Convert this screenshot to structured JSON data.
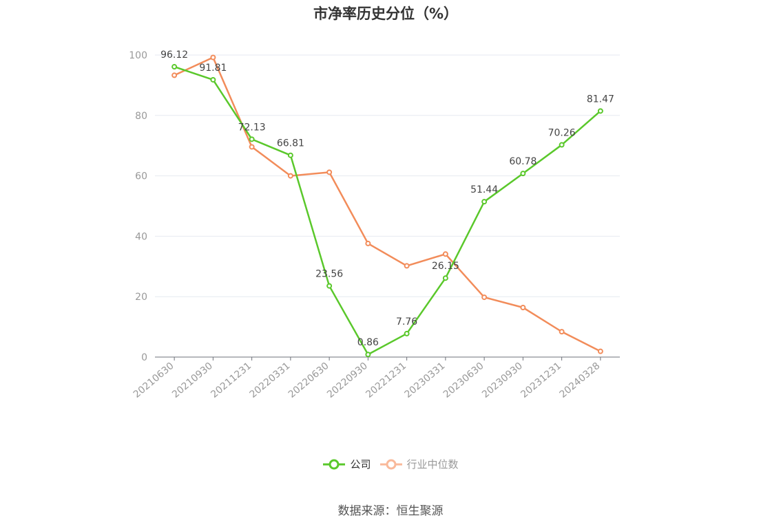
{
  "title": "市净率历史分位（%）",
  "source": "数据来源：恒生聚源",
  "chart_data": {
    "type": "line",
    "title": "市净率历史分位（%）",
    "categories": [
      "20210630",
      "20210930",
      "20211231",
      "20220331",
      "20220630",
      "20220930",
      "20221231",
      "20230331",
      "20230630",
      "20230930",
      "20231231",
      "20240328"
    ],
    "ylim": [
      0,
      100
    ],
    "yticks": [
      0,
      20,
      40,
      60,
      80,
      100
    ],
    "grid": true,
    "legend_position": "bottom",
    "series": [
      {
        "name": "公司",
        "color": "#5ac82b",
        "show_labels": true,
        "values": [
          96.12,
          91.81,
          72.13,
          66.81,
          23.56,
          0.86,
          7.76,
          26.15,
          51.44,
          60.78,
          70.26,
          81.47
        ]
      },
      {
        "name": "行业中位数",
        "color": "#f28c5a",
        "show_labels": false,
        "values": [
          93.3,
          99.2,
          69.6,
          60.0,
          61.2,
          37.6,
          30.2,
          34.1,
          19.8,
          16.4,
          8.4,
          1.9
        ]
      }
    ]
  },
  "legend": [
    {
      "label": "公司",
      "color": "#5ac82b",
      "text_color": "#333333"
    },
    {
      "label": "行业中位数",
      "color": "#f9b99a",
      "text_color": "#999999"
    }
  ]
}
